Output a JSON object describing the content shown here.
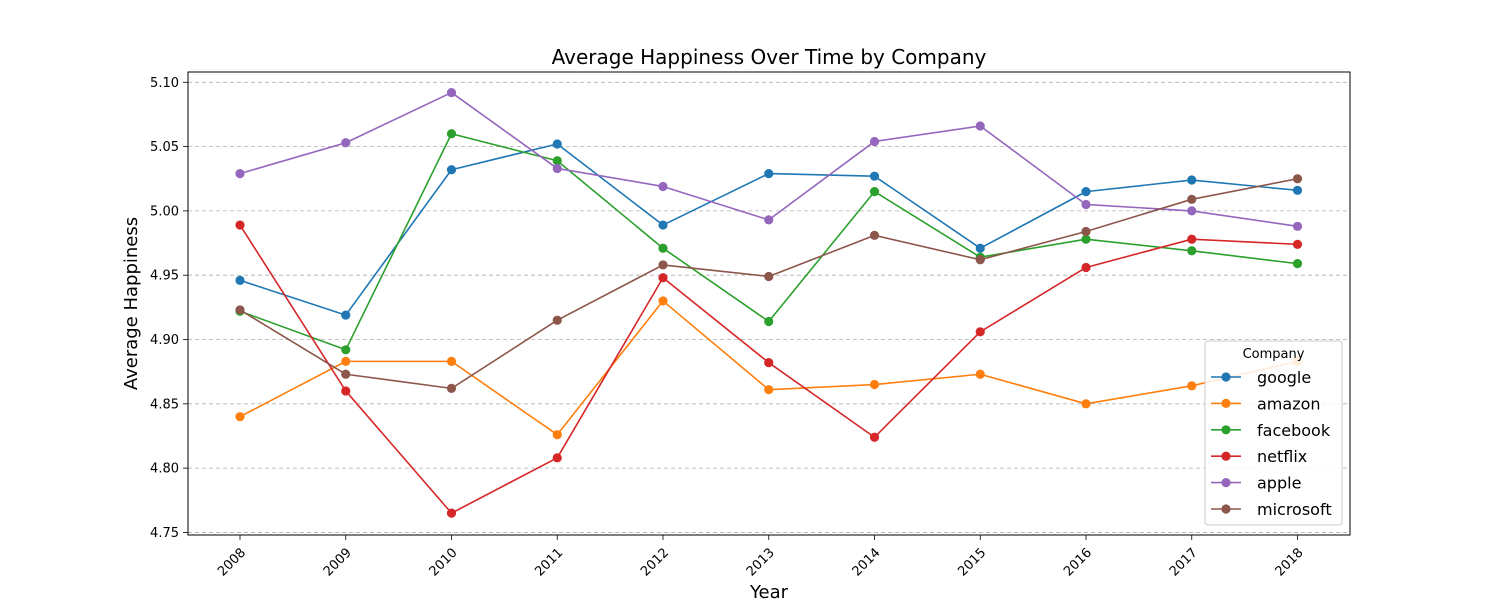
{
  "chart_data": {
    "type": "line",
    "title": "Average Happiness Over Time by Company",
    "xlabel": "Year",
    "ylabel": "Average Happiness",
    "x": [
      "2008",
      "2009",
      "2010",
      "2011",
      "2012",
      "2013",
      "2014",
      "2015",
      "2016",
      "2017",
      "2018"
    ],
    "ylim": [
      4.748,
      5.108
    ],
    "yticks": [
      "4.75",
      "4.80",
      "4.85",
      "4.90",
      "4.95",
      "5.00",
      "5.05",
      "5.10"
    ],
    "grid": "horizontal dashed",
    "legend": {
      "title": "Company",
      "position": "lower-right"
    },
    "series": [
      {
        "name": "google",
        "color": "#1f77b4",
        "values": [
          4.946,
          4.919,
          5.032,
          5.052,
          4.989,
          5.029,
          5.027,
          4.971,
          5.015,
          5.024,
          5.016
        ]
      },
      {
        "name": "amazon",
        "color": "#ff7f0e",
        "values": [
          4.84,
          4.883,
          4.883,
          4.826,
          4.93,
          4.861,
          4.865,
          4.873,
          4.85,
          4.864,
          4.883
        ]
      },
      {
        "name": "facebook",
        "color": "#2ca02c",
        "values": [
          4.922,
          4.892,
          5.06,
          5.039,
          4.971,
          4.914,
          5.015,
          4.964,
          4.978,
          4.969,
          4.959
        ]
      },
      {
        "name": "netflix",
        "color": "#d62728",
        "values": [
          4.989,
          4.86,
          4.765,
          4.808,
          4.948,
          4.882,
          4.824,
          4.906,
          4.956,
          4.978,
          4.974
        ]
      },
      {
        "name": "apple",
        "color": "#9467bd",
        "values": [
          5.029,
          5.053,
          5.092,
          5.033,
          5.019,
          4.993,
          5.054,
          5.066,
          5.005,
          5.0,
          4.988
        ]
      },
      {
        "name": "microsoft",
        "color": "#8c564b",
        "values": [
          4.923,
          4.873,
          4.862,
          4.915,
          4.958,
          4.949,
          4.981,
          4.962,
          4.984,
          5.009,
          5.025
        ]
      }
    ]
  }
}
